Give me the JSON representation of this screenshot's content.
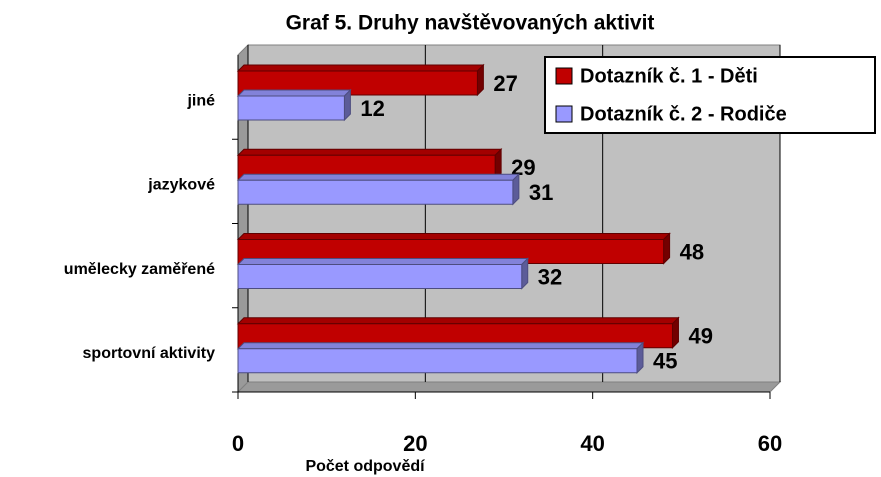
{
  "chart_data": {
    "type": "hbar3d",
    "title": "Graf 5. Druhy navštěvovaných aktivit",
    "categories": [
      "jiné",
      "jazykové",
      "umělecky zaměřené",
      "sportovní aktivity"
    ],
    "series": [
      {
        "name": "Dotazník č. 1 - Děti",
        "color": "#c00000",
        "values": [
          27,
          29,
          48,
          49
        ]
      },
      {
        "name": "Dotazník č. 2 - Rodiče",
        "color": "#9999ff",
        "values": [
          12,
          31,
          32,
          45
        ]
      }
    ],
    "xlim": [
      0,
      60
    ],
    "xticks": [
      0,
      20,
      40,
      60
    ],
    "xlabel": "Počet odpovědí",
    "grid": true,
    "legend": "upper right"
  }
}
